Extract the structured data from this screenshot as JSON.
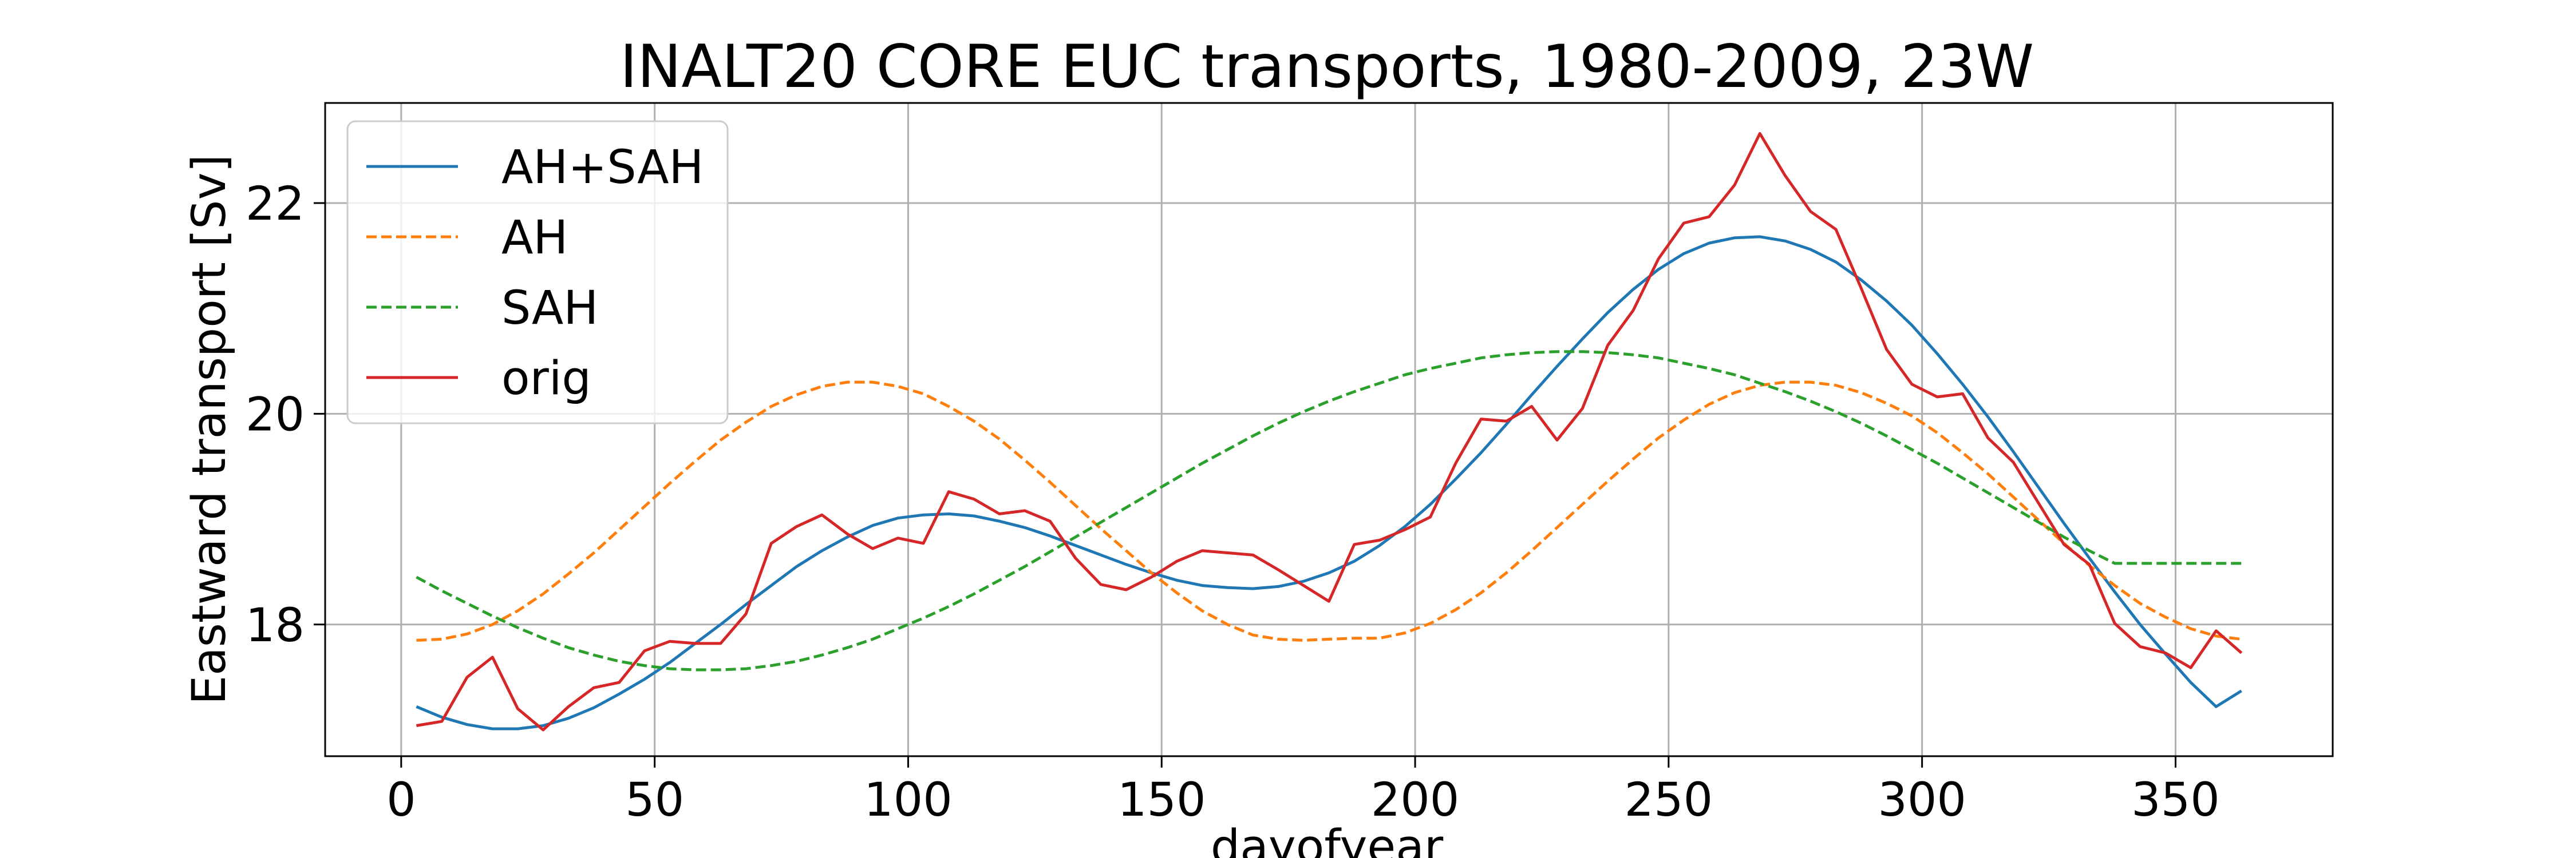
{
  "chart_data": {
    "type": "line",
    "title": "INALT20 CORE EUC transports, 1980-2009, 23W",
    "xlabel": "dayofyear",
    "ylabel": "Eastward transport [Sv]",
    "xlim": [
      -15,
      381
    ],
    "ylim": [
      16.75,
      22.95
    ],
    "xticks": [
      0,
      50,
      100,
      150,
      200,
      250,
      300,
      350
    ],
    "yticks": [
      18,
      20,
      22
    ],
    "grid": true,
    "legend_position": "top-left",
    "series": [
      {
        "name": "AH+SAH",
        "color": "#1f77b4",
        "dash": "solid",
        "x": [
          3,
          8,
          13,
          18,
          23,
          28,
          33,
          38,
          43,
          48,
          53,
          58,
          63,
          68,
          73,
          78,
          83,
          88,
          93,
          98,
          103,
          108,
          113,
          118,
          123,
          128,
          133,
          138,
          143,
          148,
          153,
          158,
          163,
          168,
          173,
          178,
          183,
          188,
          193,
          198,
          203,
          208,
          213,
          218,
          223,
          228,
          233,
          238,
          243,
          248,
          253,
          258,
          263,
          268,
          273,
          278,
          283,
          288,
          293,
          298,
          303,
          308,
          313,
          318,
          323,
          328,
          333,
          338,
          343,
          348,
          353,
          358,
          363
        ],
        "y": [
          17.22,
          17.12,
          17.05,
          17.01,
          17.01,
          17.04,
          17.11,
          17.21,
          17.34,
          17.48,
          17.64,
          17.82,
          18.0,
          18.19,
          18.37,
          18.55,
          18.7,
          18.83,
          18.94,
          19.01,
          19.04,
          19.05,
          19.03,
          18.98,
          18.92,
          18.84,
          18.75,
          18.66,
          18.57,
          18.49,
          18.42,
          18.37,
          18.35,
          18.34,
          18.36,
          18.41,
          18.49,
          18.6,
          18.75,
          18.93,
          19.14,
          19.38,
          19.63,
          19.9,
          20.18,
          20.45,
          20.71,
          20.96,
          21.18,
          21.37,
          21.52,
          21.62,
          21.67,
          21.68,
          21.64,
          21.56,
          21.44,
          21.27,
          21.07,
          20.84,
          20.57,
          20.28,
          19.97,
          19.64,
          19.3,
          18.96,
          18.63,
          18.31,
          18.0,
          17.72,
          17.45,
          17.22,
          17.37
        ]
      },
      {
        "name": "AH",
        "color": "#ff7f0e",
        "dash": "dashed",
        "x": [
          3,
          8,
          13,
          18,
          23,
          28,
          33,
          38,
          43,
          48,
          53,
          58,
          63,
          68,
          73,
          78,
          83,
          88,
          93,
          98,
          103,
          108,
          113,
          118,
          123,
          128,
          133,
          138,
          143,
          148,
          153,
          158,
          163,
          168,
          173,
          178,
          183,
          188,
          193,
          198,
          203,
          208,
          213,
          218,
          223,
          228,
          233,
          238,
          243,
          248,
          253,
          258,
          263,
          268,
          273,
          278,
          283,
          288,
          293,
          298,
          303,
          308,
          313,
          318,
          323,
          328,
          333,
          338,
          343,
          348,
          353,
          358,
          363
        ],
        "y": [
          17.85,
          17.86,
          17.91,
          18.0,
          18.13,
          18.29,
          18.48,
          18.68,
          18.9,
          19.12,
          19.34,
          19.55,
          19.75,
          19.92,
          20.07,
          20.18,
          20.26,
          20.3,
          20.3,
          20.26,
          20.19,
          20.07,
          19.93,
          19.76,
          19.56,
          19.35,
          19.13,
          18.91,
          18.7,
          18.49,
          18.3,
          18.13,
          18.0,
          17.9,
          17.86,
          17.85,
          17.86,
          17.87,
          17.87,
          17.92,
          18.01,
          18.14,
          18.3,
          18.49,
          18.7,
          18.92,
          19.14,
          19.36,
          19.57,
          19.77,
          19.94,
          20.09,
          20.2,
          20.27,
          20.3,
          20.3,
          20.27,
          20.2,
          20.1,
          19.98,
          19.82,
          19.63,
          19.43,
          19.21,
          18.99,
          18.77,
          18.56,
          18.37,
          18.2,
          18.07,
          17.96,
          17.89,
          17.86
        ]
      },
      {
        "name": "SAH",
        "color": "#2ca02c",
        "dash": "dashed",
        "x": [
          3,
          8,
          13,
          18,
          23,
          28,
          33,
          38,
          43,
          48,
          53,
          58,
          63,
          68,
          73,
          78,
          83,
          88,
          93,
          98,
          103,
          108,
          113,
          118,
          123,
          128,
          133,
          138,
          143,
          148,
          153,
          158,
          163,
          168,
          173,
          178,
          183,
          188,
          193,
          198,
          203,
          208,
          213,
          218,
          223,
          228,
          233,
          238,
          243,
          248,
          253,
          258,
          263,
          268,
          273,
          278,
          283,
          288,
          293,
          298,
          303,
          308,
          313,
          318,
          323,
          328,
          333,
          338,
          343,
          348,
          353,
          358,
          363
        ],
        "y": [
          18.45,
          18.32,
          18.2,
          18.08,
          17.97,
          17.87,
          17.78,
          17.71,
          17.65,
          17.61,
          17.58,
          17.57,
          17.57,
          17.58,
          17.61,
          17.65,
          17.71,
          17.78,
          17.86,
          17.96,
          18.06,
          18.17,
          18.29,
          18.42,
          18.55,
          18.69,
          18.83,
          18.97,
          19.11,
          19.25,
          19.39,
          19.53,
          19.66,
          19.79,
          19.91,
          20.02,
          20.12,
          20.21,
          20.29,
          20.37,
          20.43,
          20.48,
          20.53,
          20.56,
          20.58,
          20.59,
          20.59,
          20.58,
          20.56,
          20.53,
          20.48,
          20.43,
          20.37,
          20.29,
          20.21,
          20.12,
          20.02,
          19.91,
          19.79,
          19.66,
          19.53,
          19.39,
          19.25,
          19.11,
          18.97,
          18.83,
          18.7,
          18.58,
          18.58,
          18.58,
          18.58,
          18.58,
          18.58
        ]
      },
      {
        "name": "orig",
        "color": "#d62728",
        "dash": "solid",
        "x": [
          3,
          8,
          13,
          18,
          23,
          28,
          33,
          38,
          43,
          48,
          53,
          58,
          63,
          68,
          73,
          78,
          83,
          88,
          93,
          98,
          103,
          108,
          113,
          118,
          123,
          128,
          133,
          138,
          143,
          148,
          153,
          158,
          163,
          168,
          173,
          178,
          183,
          188,
          193,
          198,
          203,
          208,
          213,
          218,
          223,
          228,
          233,
          238,
          243,
          248,
          253,
          258,
          263,
          268,
          273,
          278,
          283,
          288,
          293,
          298,
          303,
          308,
          313,
          318,
          323,
          328,
          333,
          338,
          343,
          348,
          353,
          358,
          363
        ],
        "y": [
          17.04,
          17.08,
          17.5,
          17.69,
          17.2,
          17.0,
          17.22,
          17.4,
          17.45,
          17.75,
          17.84,
          17.82,
          17.82,
          18.1,
          18.77,
          18.93,
          19.04,
          18.86,
          18.72,
          18.82,
          18.77,
          19.26,
          19.19,
          19.05,
          19.08,
          18.98,
          18.63,
          18.38,
          18.33,
          18.45,
          18.6,
          18.7,
          18.68,
          18.66,
          18.52,
          18.37,
          18.22,
          18.76,
          18.8,
          18.9,
          19.02,
          19.53,
          19.95,
          19.93,
          20.07,
          19.75,
          20.05,
          20.65,
          20.98,
          21.47,
          21.81,
          21.87,
          22.17,
          22.66,
          22.26,
          21.92,
          21.75,
          21.19,
          20.61,
          20.28,
          20.16,
          20.19,
          19.77,
          19.54,
          19.15,
          18.76,
          18.57,
          18.01,
          17.79,
          17.73,
          17.59,
          17.94,
          17.73
        ]
      }
    ]
  }
}
